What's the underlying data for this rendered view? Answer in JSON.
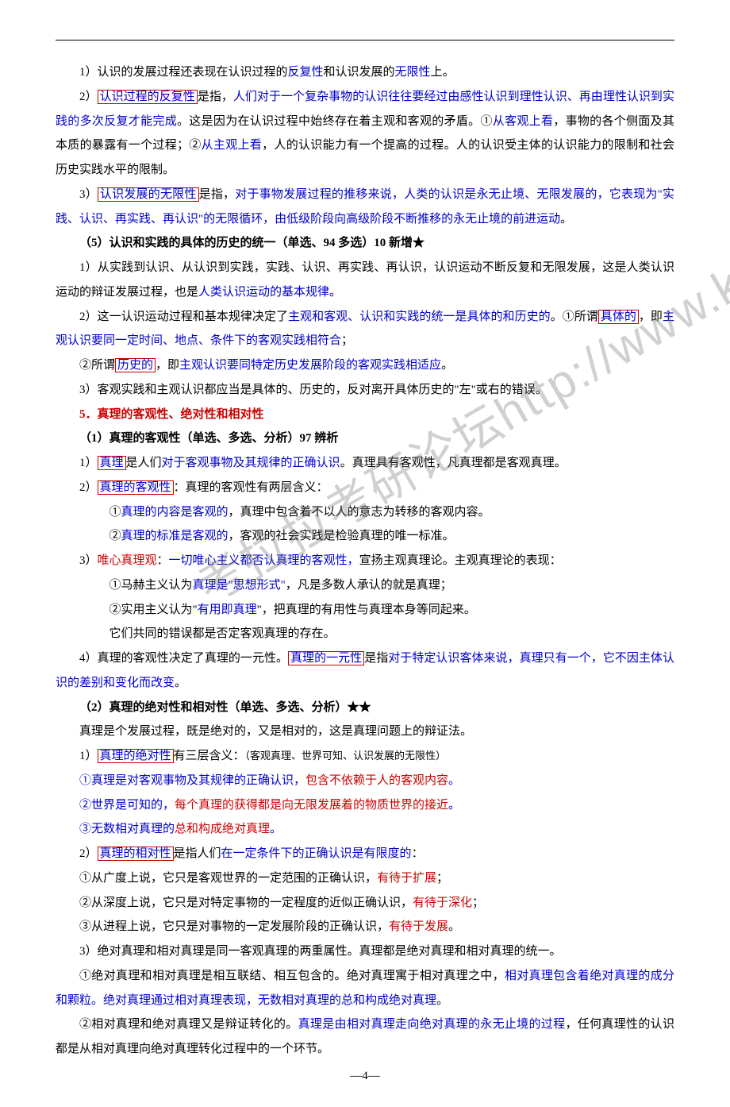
{
  "watermark": "考拉拉考研论坛http://www.kaolala.net",
  "pagenum": "—4—",
  "p1_a": "1）认识的发展过程还表现在认识过程的",
  "p1_b": "反复性",
  "p1_c": "和认识发展的",
  "p1_d": "无限性",
  "p1_e": "上。",
  "p2_a": "2）",
  "p2_box": "认识过程的反复性",
  "p2_b": "是指，",
  "p2_c": "人们对于一个复杂事物的认识往往要经过由感性认识到理性认识、再由理性认识到实践的多次反复才能完成",
  "p2_d": "。这是因为在认识过程中始终存在着主观和客观的矛盾。①",
  "p2_e": "从客观上看",
  "p2_f": "，事物的各个侧面及其本质的暴露有一个过程；②",
  "p2_g": "从主观上看",
  "p2_h": "，人的认识能力有一个提高的过程。人的认识受主体的认识能力的限制和社会历史实践水平的限制。",
  "p3_a": "3）",
  "p3_box": "认识发展的无限性",
  "p3_b": "是指，",
  "p3_c": "对于事物发展过程的推移来说，人类的认识是永无止境、无限发展的，它表现为\"实践、认识、再实践、再认识\"的无限循环，由低级阶段向高级阶段不断推移的永无止境的前进运动",
  "p3_d": "。",
  "p4": "（5）认识和实践的具体的历史的统一（单选、94 多选）10 新增★",
  "p5_a": "1）从实践到认识、从认识到实践，实践、认识、再实践、再认识，认识运动不断反复和无限发展，这是人类认识运动的辩证发展过程，也是",
  "p5_b": "人类认识运动的基本规律",
  "p5_c": "。",
  "p6_a": "2）这一认识运动过程和基本规律决定了",
  "p6_b": "主观和客观、认识和实践的统一是具体的和历史的",
  "p6_c": "。①所谓",
  "p6_box": "具体的",
  "p6_d": "，即",
  "p6_e": "主观认识要同一定时间、地点、条件下的客观实践相符合",
  "p6_f": "；",
  "p7_a": "②所谓",
  "p7_box": "历史的",
  "p7_b": "，即",
  "p7_c": "主观认识要同特定历史发展阶段的客观实践相适应",
  "p7_d": "。",
  "p8": "3）客观实践和主观认识都应当是具体的、历史的，反对离开具体历史的\"左\"或右的错误。",
  "p9": "5．真理的客观性、绝对性和相对性",
  "p10": "（1）真理的客观性（单选、多选、分析）97 辨析",
  "p11_a": "1）",
  "p11_box": "真理",
  "p11_b": "是人们",
  "p11_c": "对于客观事物及其规律的正确认识",
  "p11_d": "。真理具有客观性，凡真理都是客观真理。",
  "p12_a": "2）",
  "p12_box": "真理的客观性",
  "p12_b": "：真理的客观性有两层含义：",
  "p13_a": "①",
  "p13_b": "真理的内容是客观的",
  "p13_c": "，真理中包含着不以人的意志为转移的客观内容。",
  "p14_a": "②",
  "p14_b": "真理的标准是客观的",
  "p14_c": "，客观的社会实践是检验真理的唯一标准。",
  "p15_a": "3）",
  "p15_b": "唯心真理观",
  "p15_c": "：",
  "p15_d": "一切唯心主义都否认真理的客观性，",
  "p15_e": "宣扬主观真理论。主观真理论的表现：",
  "p16_a": "①马赫主义认为",
  "p16_b": "真理是\"思想形式\"",
  "p16_c": "，凡是多数人承认的就是真理；",
  "p17_a": "②实用主义认为\"",
  "p17_b": "有用即真理",
  "p17_c": "\"，把真理的有用性与真理本身等同起来。",
  "p18": "它们共同的错误都是否定客观真理的存在。",
  "p19_a": "4）真理的客观性决定了真理的一元性。",
  "p19_box": "真理的一元性",
  "p19_b": "是指",
  "p19_c": "对于特定认识客体来说，真理只有一个，它不因主体认识的差别和变化而改变",
  "p19_d": "。",
  "p20": "（2）真理的绝对性和相对性（单选、多选、分析）★★",
  "p21": "真理是个发展过程，既是绝对的，又是相对的，这是真理问题上的辩证法。",
  "p22_a": "1）",
  "p22_box": "真理的绝对性",
  "p22_b": "有三层含义：",
  "p22_c": "（客观真理、世界可知、认识发展的无限性）",
  "p23_a": "①真理是对客观事物及其规律的正确认识，",
  "p23_b": "包含不依赖于人的客观内容",
  "p23_c": "。",
  "p24_a": "②世界是可知的，",
  "p24_b": "每个真理的获得都是向无限发展着的物质世界的接近",
  "p24_c": "。",
  "p25_a": "③无数相对真理的",
  "p25_b": "总和构成绝对真理",
  "p25_c": "。",
  "p26_a": "2）",
  "p26_box": "真理的相对性",
  "p26_b": "是指人们",
  "p26_c": "在一定条件下的正确认识是有限度的",
  "p26_d": "：",
  "p27_a": "①从广度上说，它只是客观世界的一定范围的正确认识，",
  "p27_b": "有待于扩展",
  "p27_c": "；",
  "p28_a": "②从深度上说，它只是对特定事物的一定程度的近似正确认识，",
  "p28_b": "有待于深化",
  "p28_c": "；",
  "p29_a": "③从进程上说，它只是对事物的一定发展阶段的正确认识，",
  "p29_b": "有待于发展",
  "p29_c": "。",
  "p30": "3）绝对真理和相对真理是同一客观真理的两重属性。真理都是绝对真理和相对真理的统一。",
  "p31_a": "①绝对真理和相对真理是相互联结、相互包含的。绝对真理寓于相对真理之中，",
  "p31_b": "相对真理包含着绝对真理的成分和颗粒。绝对真理通过相对真理表现，无数相对真理的总和构成绝对真理",
  "p31_c": "。",
  "p32_a": "②相对真理和绝对真理又是辩证转化的。",
  "p32_b": "真理是由相对真理走向绝对真理的永无止境的过程",
  "p32_c": "，任何真理性的认识都是从相对真理向绝对真理转化过程中的一个环节。"
}
